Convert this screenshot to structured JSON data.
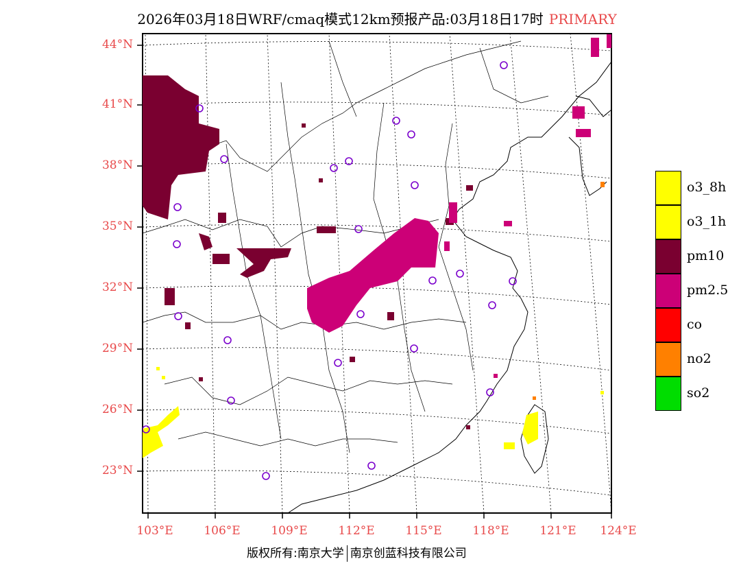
{
  "header": {
    "title": "2026年03月18日WRF/cmaq模式12km预报产品:03月18日17时",
    "tag": "PRIMARY"
  },
  "axes": {
    "lat_labels": [
      "44°N",
      "41°N",
      "38°N",
      "35°N",
      "32°N",
      "29°N",
      "26°N",
      "23°N"
    ],
    "lon_labels": [
      "103°E",
      "106°E",
      "109°E",
      "112°E",
      "115°E",
      "118°E",
      "121°E",
      "124°E"
    ]
  },
  "legend": {
    "items": [
      {
        "label": "o3_8h",
        "color": "#ffff00"
      },
      {
        "label": "o3_1h",
        "color": "#ffff00"
      },
      {
        "label": "pm10",
        "color": "#7a0030"
      },
      {
        "label": "pm2.5",
        "color": "#cc0077"
      },
      {
        "label": "co",
        "color": "#ff0000"
      },
      {
        "label": "no2",
        "color": "#ff8000"
      },
      {
        "label": "so2",
        "color": "#00dd00"
      }
    ]
  },
  "footer": {
    "copyright_left": "版权所有:南京大学",
    "copyright_right": "南京创蓝科技有限公司"
  },
  "colors": {
    "tick_text": "#e8494a",
    "station_marker": "#7a00cc",
    "pm10": "#7a0030",
    "pm25": "#cc0077",
    "o3": "#ffff00",
    "no2": "#ff8000"
  }
}
